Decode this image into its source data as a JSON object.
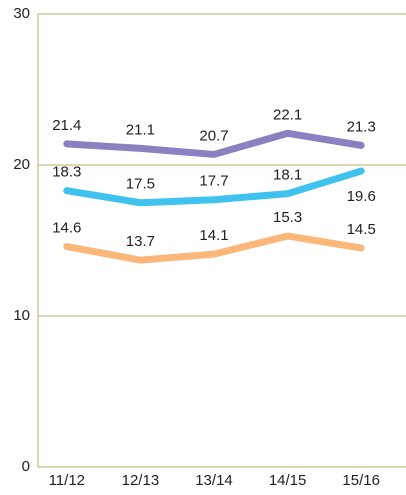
{
  "chart_data": {
    "type": "line",
    "categories": [
      "11/12",
      "12/13",
      "13/14",
      "14/15",
      "15/16"
    ],
    "series": [
      {
        "color": "#8b80c0",
        "values": [
          21.4,
          21.1,
          20.7,
          22.1,
          21.3
        ]
      },
      {
        "color": "#3fc3ee",
        "values": [
          18.3,
          17.5,
          17.7,
          18.1,
          19.6
        ]
      },
      {
        "color": "#fbb77a",
        "values": [
          14.6,
          13.7,
          14.1,
          15.3,
          14.5
        ]
      }
    ],
    "ylim": [
      0,
      30
    ],
    "yticks": [
      0,
      10,
      20,
      30
    ],
    "grid": true
  }
}
